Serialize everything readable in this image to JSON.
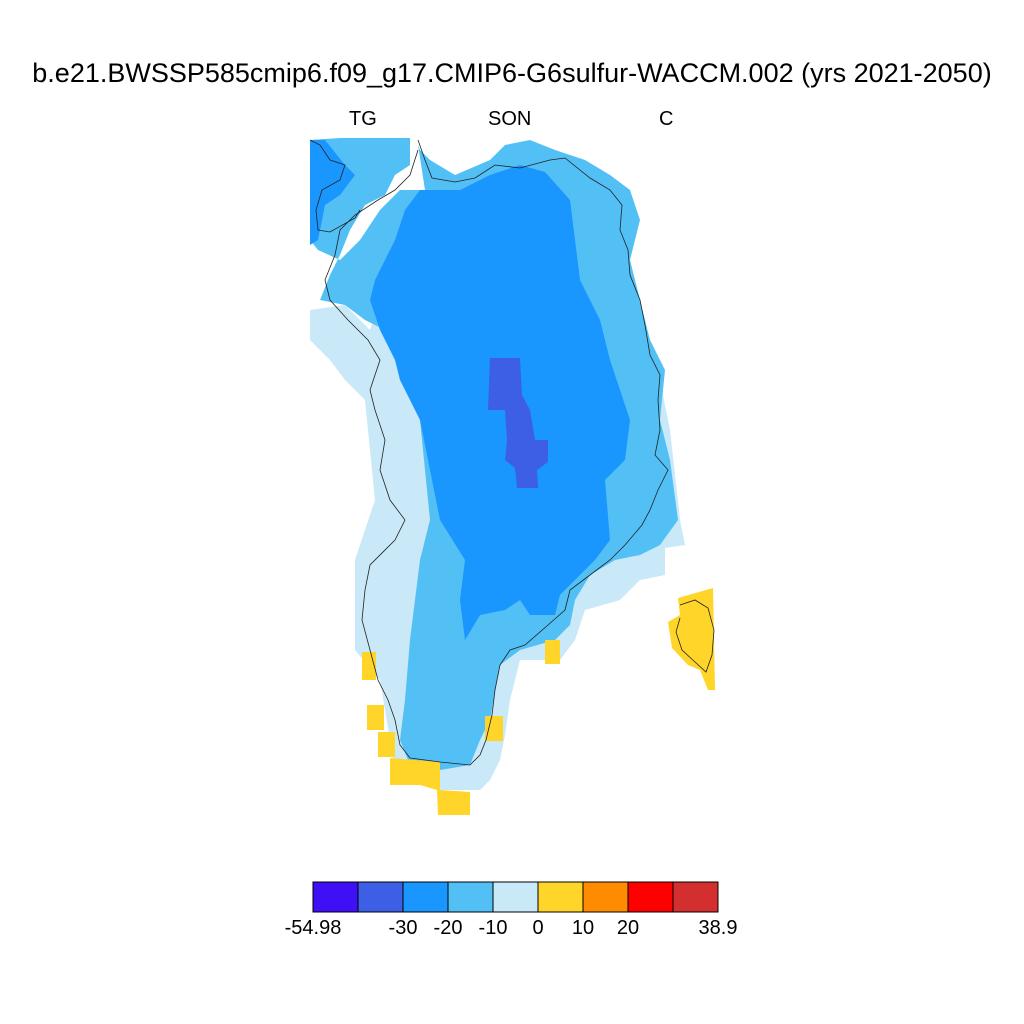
{
  "title": "b.e21.BWSSP585cmip6.f09_g17.CMIP6-G6sulfur-WACCM.002 (yrs 2021-2050)",
  "subtitle": {
    "left": "TG",
    "center": "SON",
    "right": "C"
  },
  "colorbar": {
    "colors": [
      "#3f10f5",
      "#3c5fe6",
      "#1a96ff",
      "#52c0f5",
      "#c9e8f8",
      "#ffd52a",
      "#ff8c00",
      "#ff0000",
      "#d32f2f"
    ],
    "labels": [
      "-54.98",
      "-30",
      "-20",
      "-10",
      "0",
      "10",
      "20",
      "38.9"
    ],
    "label_edges": [
      0,
      2,
      3,
      4,
      5,
      6,
      7,
      9
    ]
  },
  "regions": [
    {
      "name": "outer-ice-margin",
      "level": "0 to -10",
      "color": "#c9e8f8"
    },
    {
      "name": "coastal-band",
      "level": "-10 to -20",
      "color": "#52c0f5"
    },
    {
      "name": "interior",
      "level": "-20 to -30",
      "color": "#1a96ff"
    },
    {
      "name": "summit",
      "level": "-30 to -54.98",
      "color": "#3c5fe6"
    },
    {
      "name": "south-tip",
      "level": "0 to 10",
      "color": "#ffd52a"
    },
    {
      "name": "iceland",
      "level": "0 to 10",
      "color": "#ffd52a"
    }
  ]
}
